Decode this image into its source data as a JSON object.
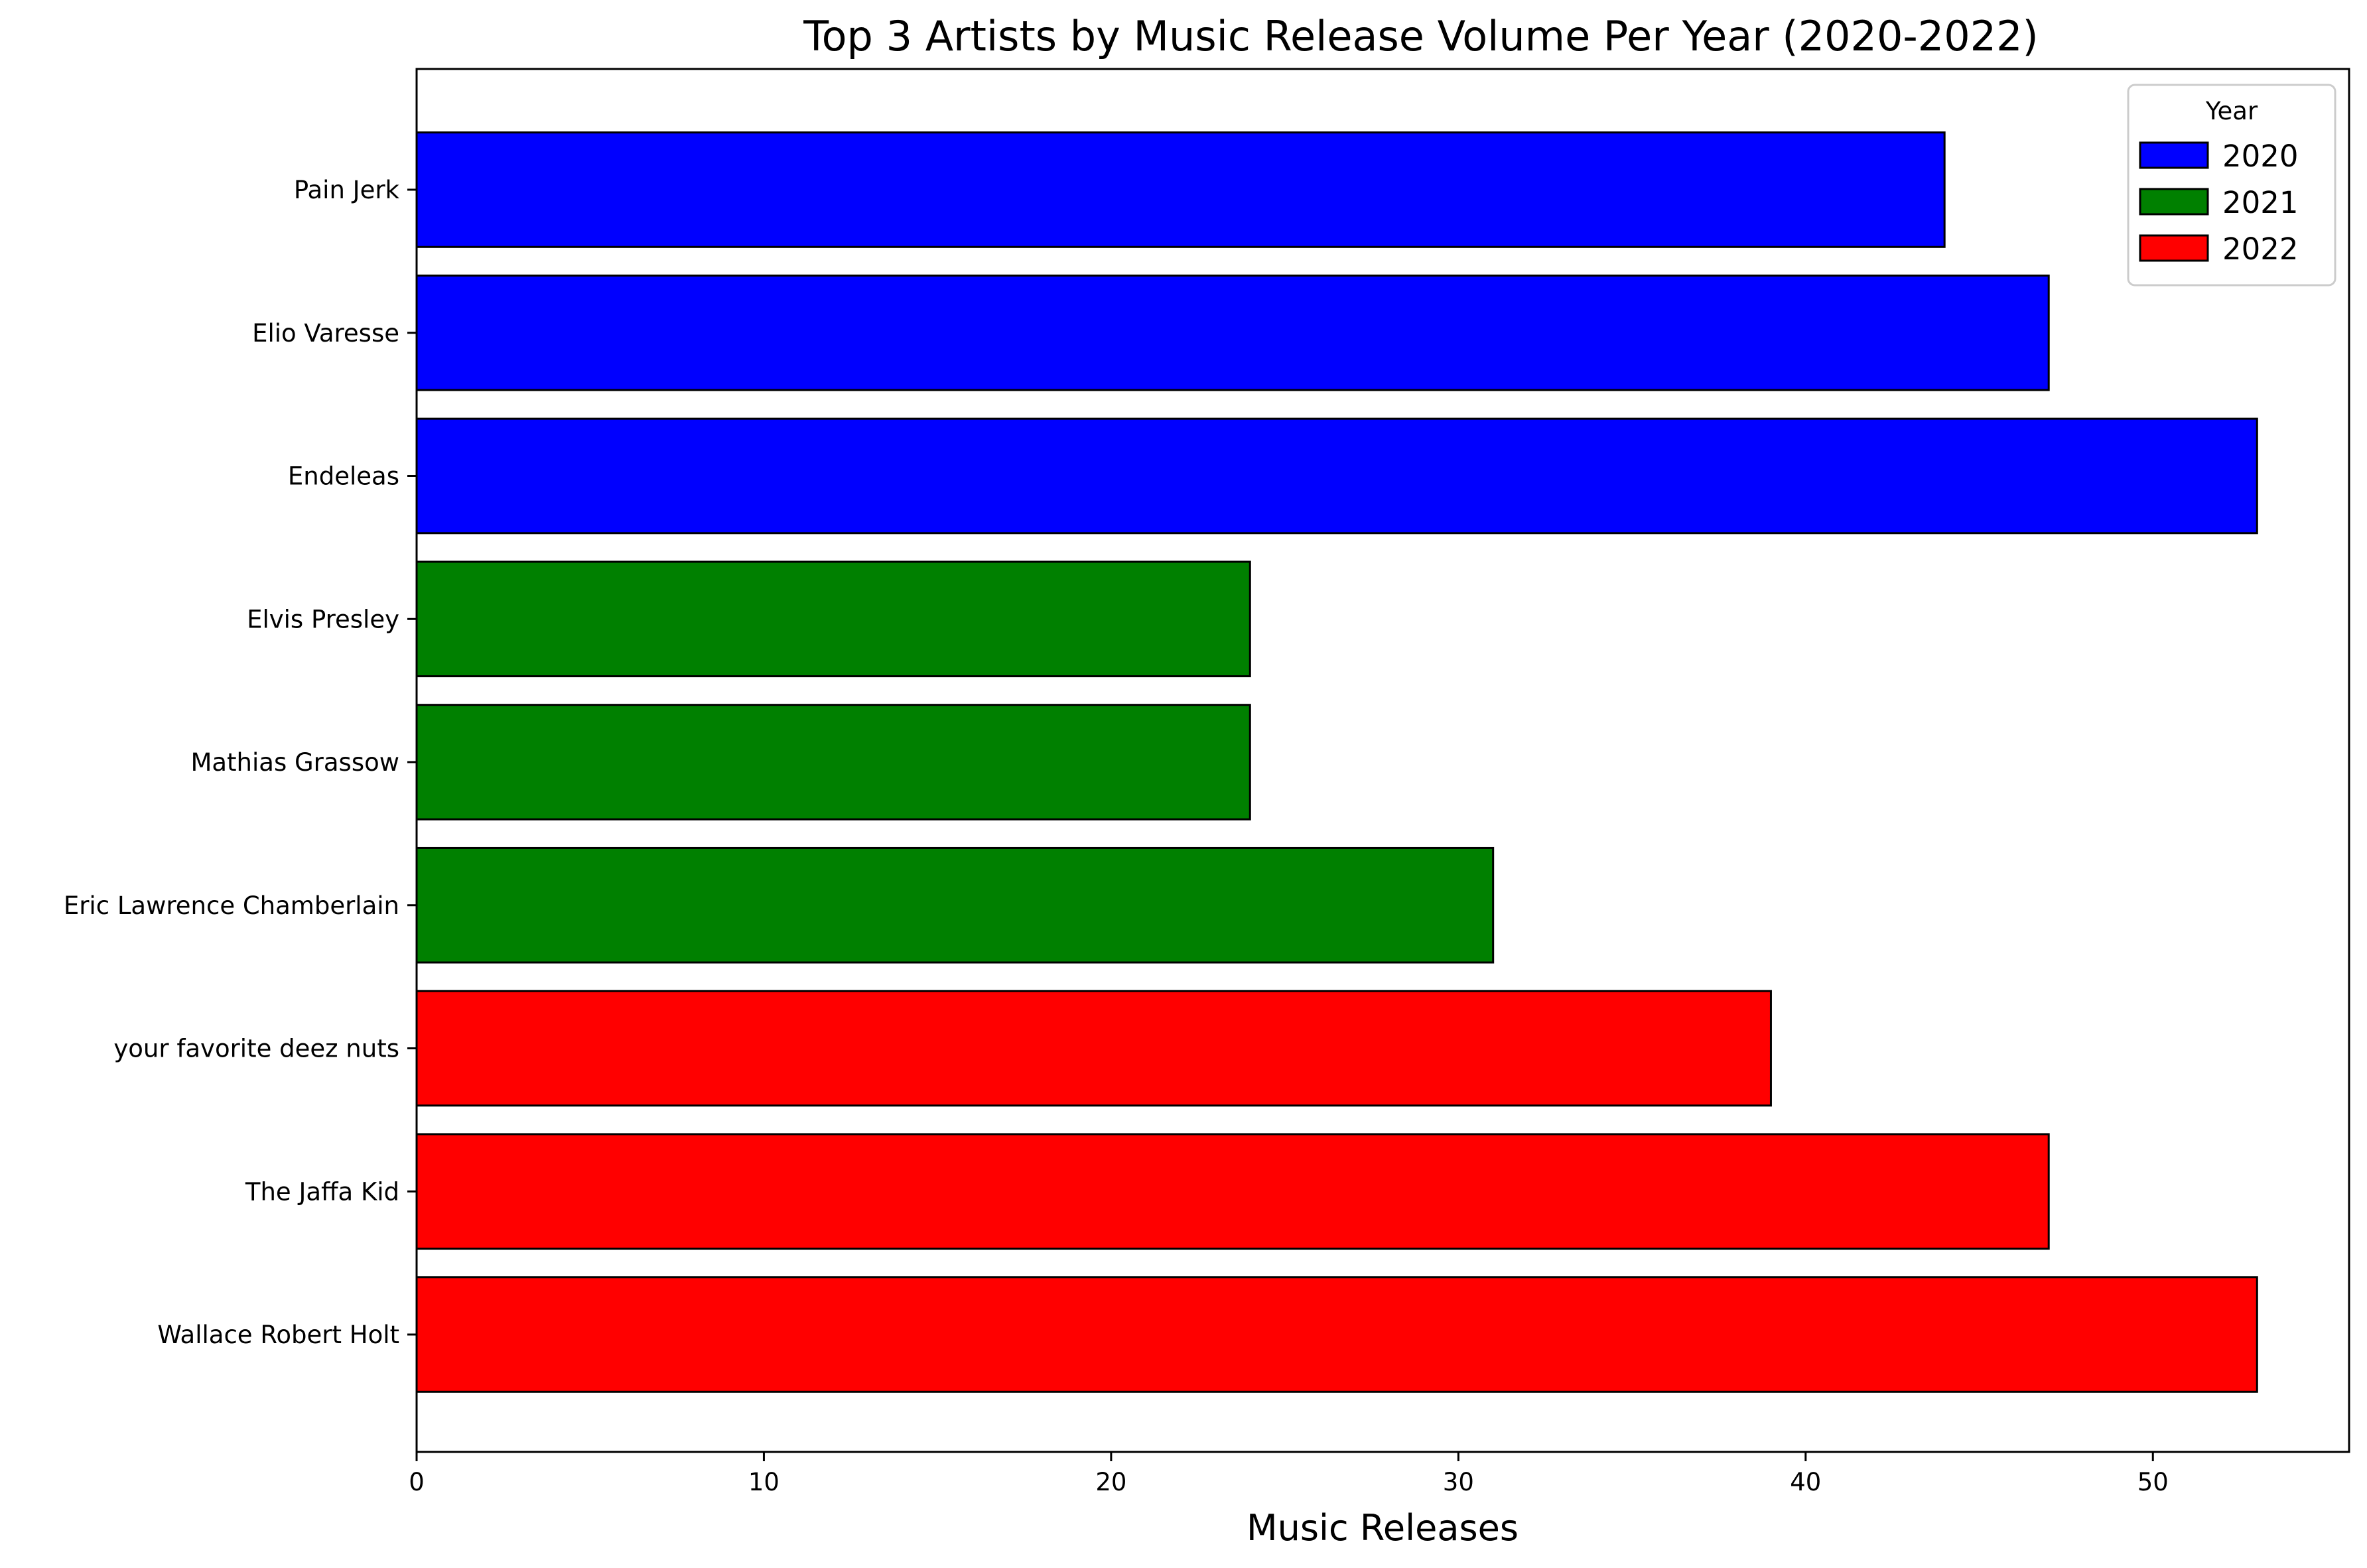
{
  "chart_data": {
    "type": "bar",
    "orientation": "horizontal",
    "title": "Top 3 Artists by Music Release Volume Per Year (2020-2022)",
    "xlabel": "Music Releases",
    "ylabel": "",
    "xlim": [
      0,
      55.65
    ],
    "xticks": [
      0,
      10,
      20,
      30,
      40,
      50
    ],
    "grid": false,
    "legend": {
      "title": "Year",
      "placement": "top-right",
      "entries": [
        {
          "label": "2020",
          "color": "#0000ff"
        },
        {
          "label": "2021",
          "color": "#008000"
        },
        {
          "label": "2022",
          "color": "#ff0000"
        }
      ]
    },
    "bars": [
      {
        "category": "Pain Jerk",
        "value": 44,
        "year": "2020"
      },
      {
        "category": "Elio Varesse",
        "value": 47,
        "year": "2020"
      },
      {
        "category": "Endeleas",
        "value": 53,
        "year": "2020"
      },
      {
        "category": "Elvis Presley",
        "value": 24,
        "year": "2021"
      },
      {
        "category": "Mathias Grassow",
        "value": 24,
        "year": "2021"
      },
      {
        "category": "Eric Lawrence Chamberlain",
        "value": 31,
        "year": "2021"
      },
      {
        "category": "your favorite deez nuts",
        "value": 39,
        "year": "2022"
      },
      {
        "category": "The Jaffa Kid",
        "value": 47,
        "year": "2022"
      },
      {
        "category": "Wallace Robert Holt",
        "value": 53,
        "year": "2022"
      }
    ]
  }
}
